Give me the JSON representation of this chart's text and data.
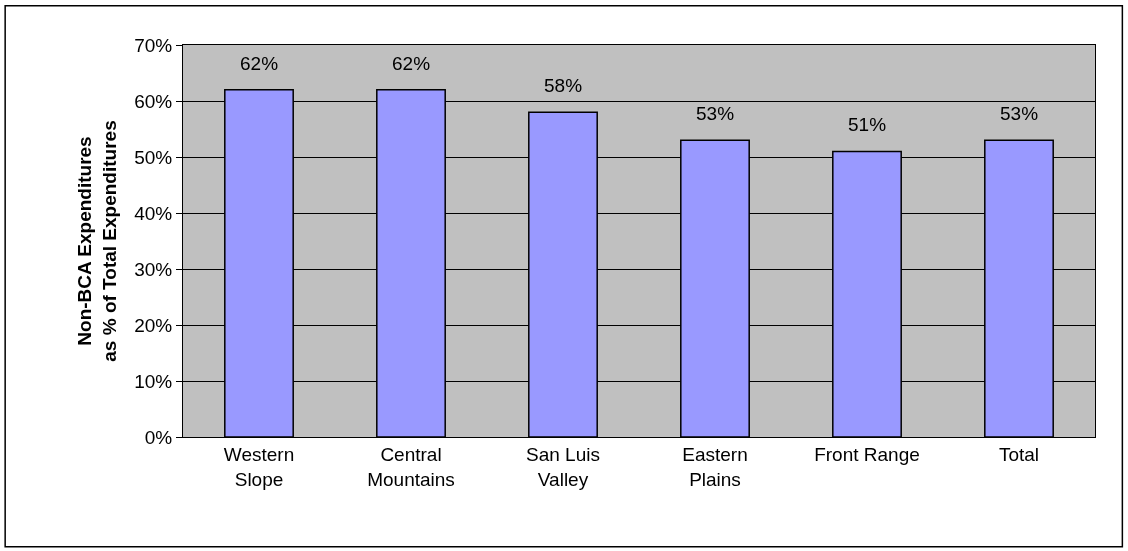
{
  "chart_data": {
    "type": "bar",
    "ylabel": "Non-BCA Expenditures\nas % of Total Expenditures",
    "categories": [
      "Western\nSlope",
      "Central\nMountains",
      "San Luis\nValley",
      "Eastern\nPlains",
      "Front Range",
      "Total"
    ],
    "values": [
      62,
      62,
      58,
      53,
      51,
      53
    ],
    "value_labels": [
      "62%",
      "62%",
      "58%",
      "53%",
      "51%",
      "53%"
    ],
    "color": "#9999ff",
    "ylim": [
      0,
      70
    ],
    "yticks": [
      {
        "value": 0,
        "label": "0%"
      },
      {
        "value": 10,
        "label": "10%"
      },
      {
        "value": 20,
        "label": "20%"
      },
      {
        "value": 30,
        "label": "30%"
      },
      {
        "value": 40,
        "label": "40%"
      },
      {
        "value": 50,
        "label": "50%"
      },
      {
        "value": 60,
        "label": "60%"
      },
      {
        "value": 70,
        "label": "70%"
      }
    ],
    "grid": "y",
    "legend": false
  }
}
